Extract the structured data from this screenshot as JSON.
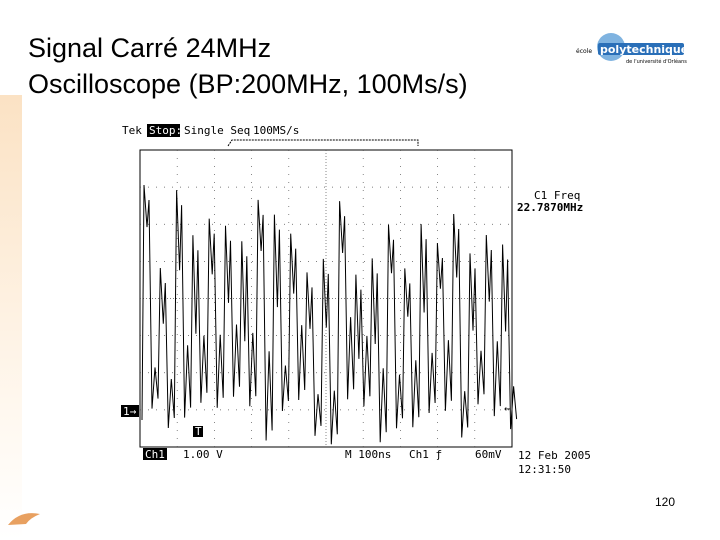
{
  "title": [
    "Signal Carré 24MHz",
    "Oscilloscope (BP:200MHz, 100Ms/s)"
  ],
  "logo": {
    "prefix": "école",
    "name": "polytechnique",
    "subtitle": "de l'université d'Orléans"
  },
  "scope": {
    "brand": "Tek",
    "status": "Stop:",
    "mode": "Single Seq",
    "rate": "100MS/s",
    "measure_label": "C1 Freq",
    "measure_value": "22.7870MHz",
    "channel": "Ch1",
    "volts": "1.00 V",
    "timebase": "M 100ns",
    "trigger_source": "Ch1 ƒ",
    "trigger_level": "60mV",
    "date": "12 Feb 2005",
    "time": "12:31:50",
    "ground_marker": "1→",
    "trigger_marker": "T"
  },
  "page_number": "120"
}
